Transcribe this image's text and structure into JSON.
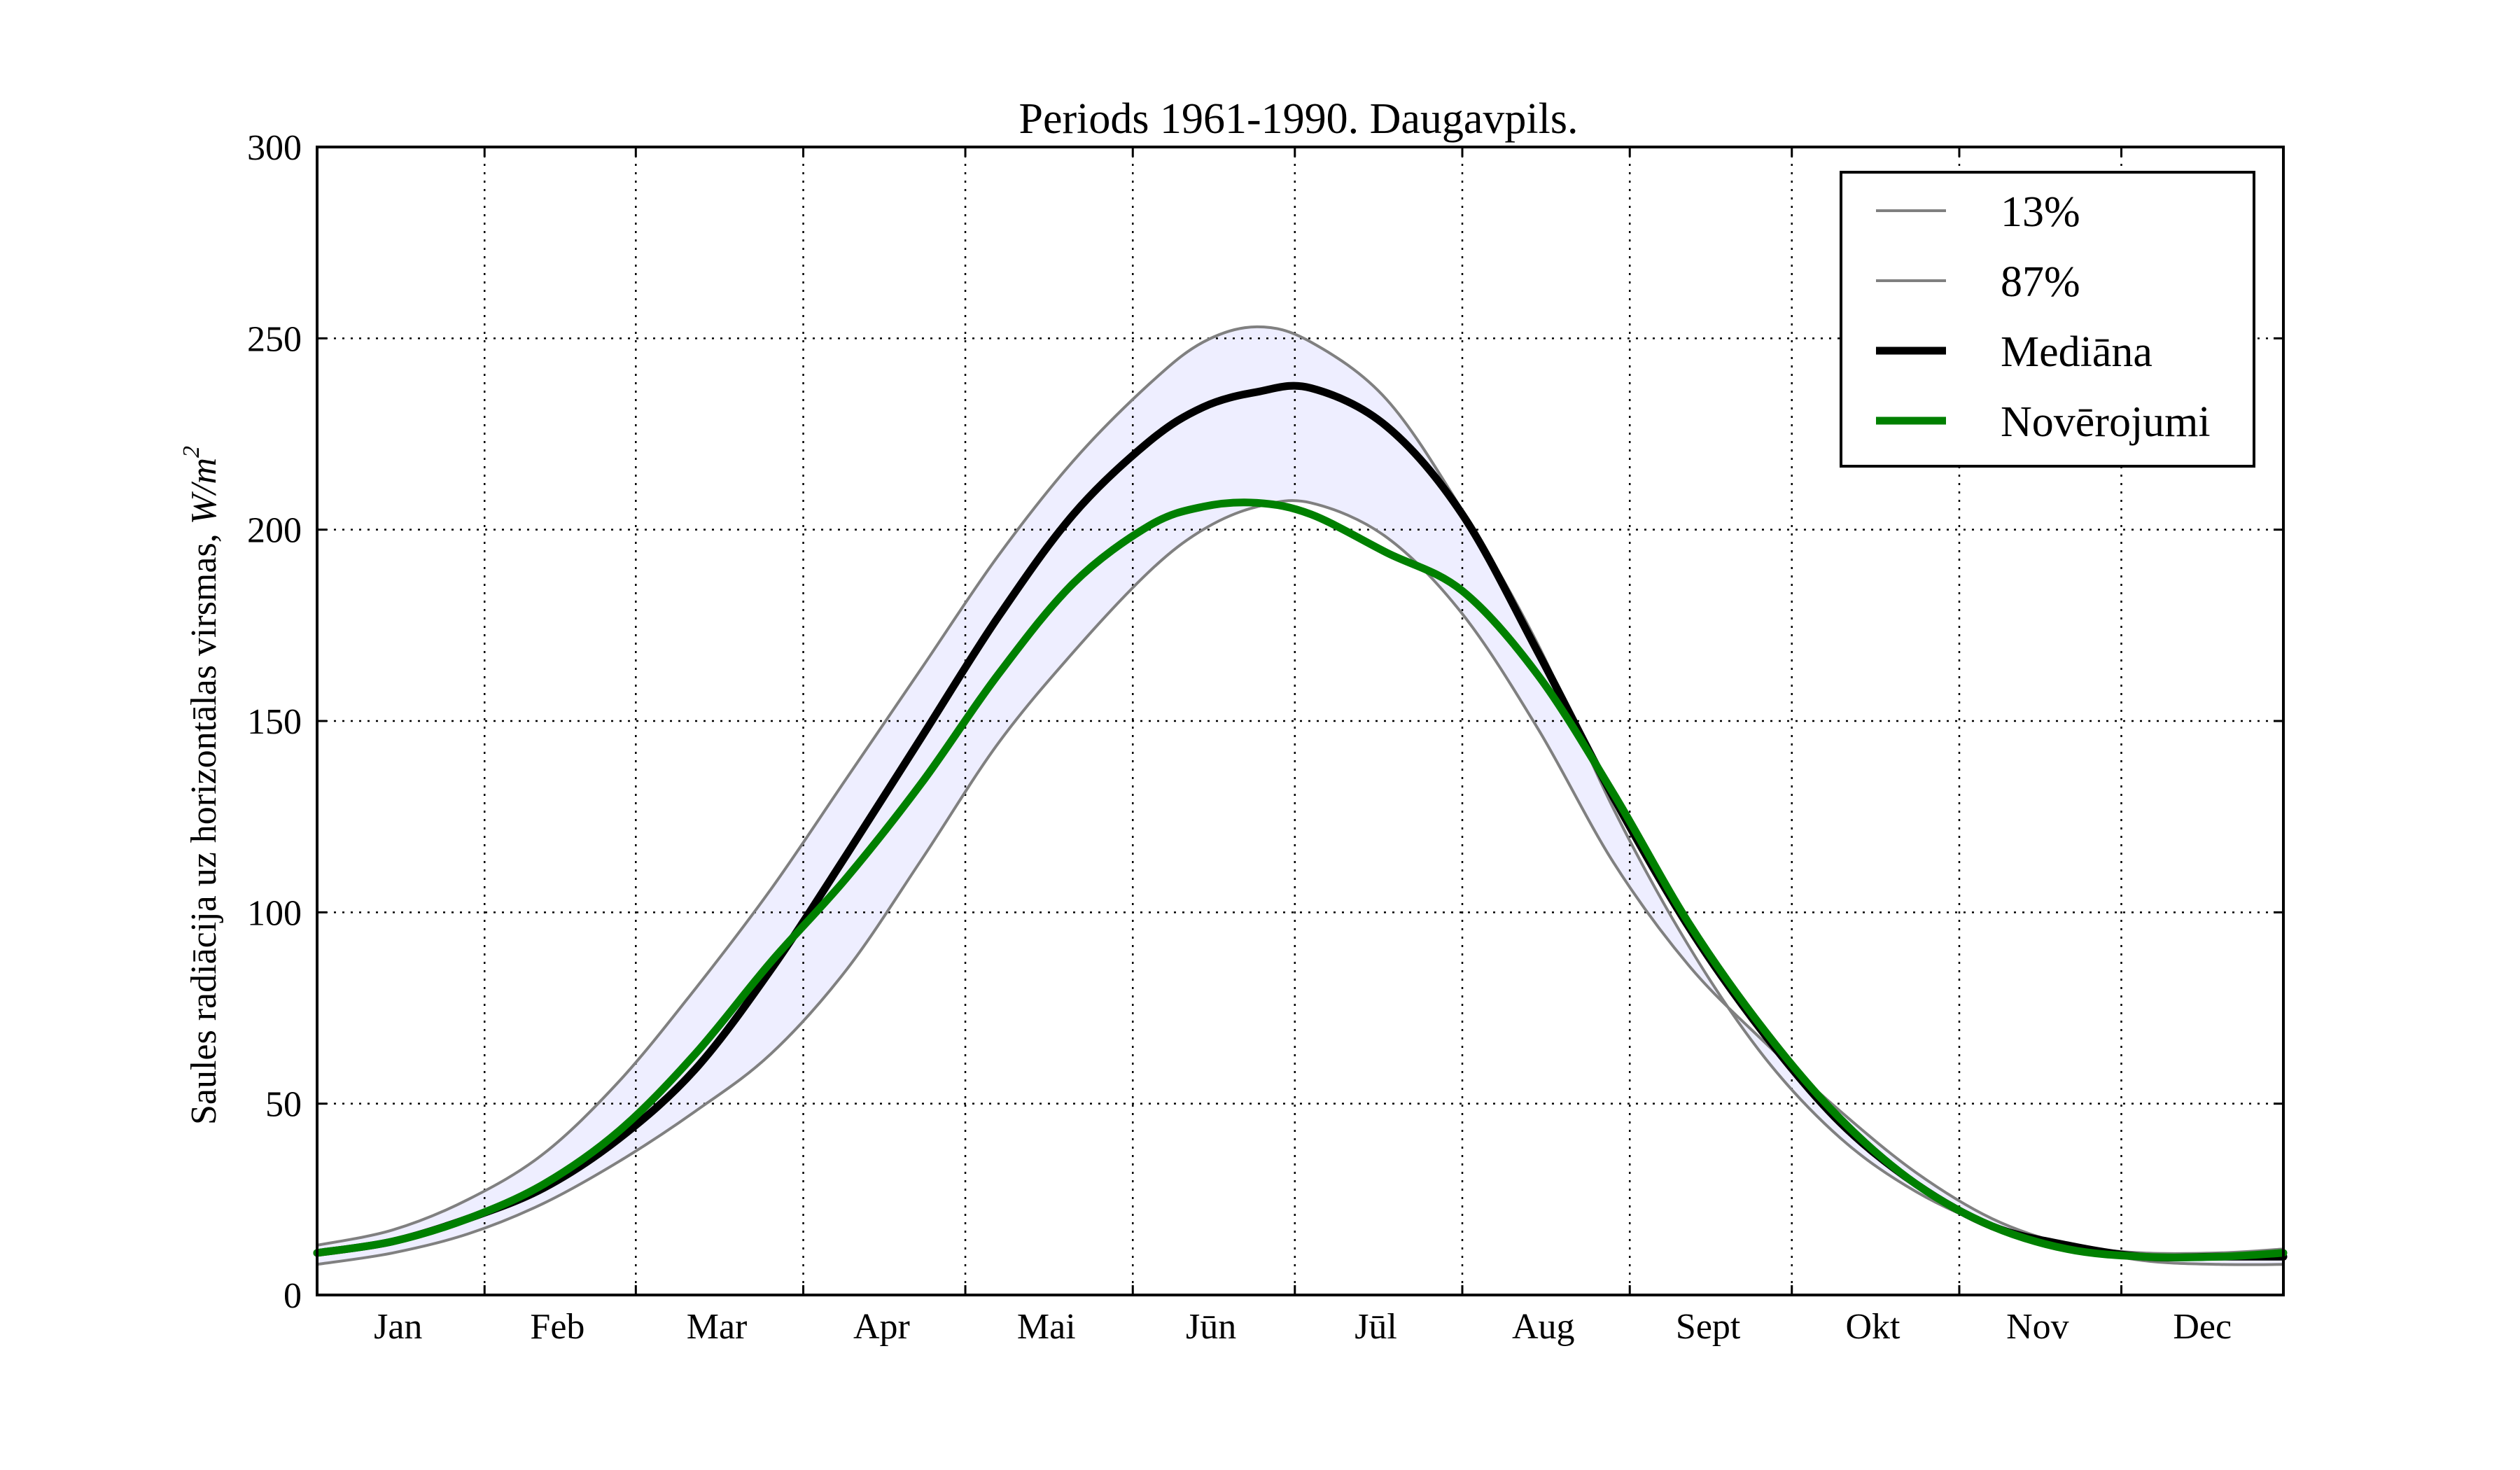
{
  "chart_data": {
    "type": "line",
    "title": "Periods 1961-1990. Daugavpils.",
    "ylabel_prefix": "Saules radiācija uz horizontālas virsmas, ",
    "ylabel_unit": "W/m",
    "ylabel_exp": "2",
    "xlabel": "",
    "ylim": [
      0,
      300
    ],
    "yticks": [
      0,
      50,
      100,
      150,
      200,
      250,
      300
    ],
    "grid": true,
    "legend_position": "top-right",
    "months": [
      {
        "label": "Jan",
        "days": 31
      },
      {
        "label": "Feb",
        "days": 28
      },
      {
        "label": "Mar",
        "days": 31
      },
      {
        "label": "Apr",
        "days": 30
      },
      {
        "label": "Mai",
        "days": 31
      },
      {
        "label": "Jūn",
        "days": 30
      },
      {
        "label": "Jūl",
        "days": 31
      },
      {
        "label": "Aug",
        "days": 31
      },
      {
        "label": "Sept",
        "days": 30
      },
      {
        "label": "Okt",
        "days": 31
      },
      {
        "label": "Nov",
        "days": 30
      },
      {
        "label": "Dec",
        "days": 31
      }
    ],
    "x": [
      1,
      15,
      29,
      43,
      57,
      71,
      85,
      99,
      113,
      127,
      141,
      155,
      165,
      175,
      185,
      199,
      213,
      227,
      241,
      255,
      269,
      283,
      297,
      311,
      325,
      339,
      353,
      365
    ],
    "band_color": "#eeeeff",
    "series": [
      {
        "name": "13%",
        "color": "#808080",
        "width": 4,
        "values": [
          8,
          11,
          16,
          24,
          35,
          48,
          63,
          85,
          114,
          144,
          168,
          189,
          200,
          206,
          207,
          198,
          178,
          148,
          113,
          86,
          66,
          48,
          32,
          20,
          13,
          9,
          8,
          8
        ]
      },
      {
        "name": "87%",
        "color": "#808080",
        "width": 4,
        "values": [
          13,
          17,
          25,
          37,
          56,
          80,
          106,
          135,
          164,
          193,
          218,
          238,
          249,
          253,
          249,
          234,
          205,
          170,
          127,
          91,
          62,
          41,
          27,
          18,
          13,
          11,
          11,
          12
        ]
      },
      {
        "name": "Mediāna",
        "color": "#000000",
        "width": 11,
        "values": [
          11,
          14,
          20,
          28,
          41,
          59,
          85,
          115,
          146,
          177,
          204,
          223,
          232,
          236,
          237,
          227,
          204,
          168,
          130,
          96,
          68,
          45,
          29,
          18,
          13,
          10,
          10,
          10
        ]
      },
      {
        "name": "Novērojumi",
        "color": "#008000",
        "width": 11,
        "values": [
          11,
          14,
          20,
          29,
          43,
          63,
          87,
          109,
          134,
          162,
          186,
          201,
          206,
          207,
          204,
          194,
          184,
          162,
          131,
          97,
          69,
          46,
          29,
          18,
          12,
          10,
          10,
          11
        ]
      }
    ]
  }
}
